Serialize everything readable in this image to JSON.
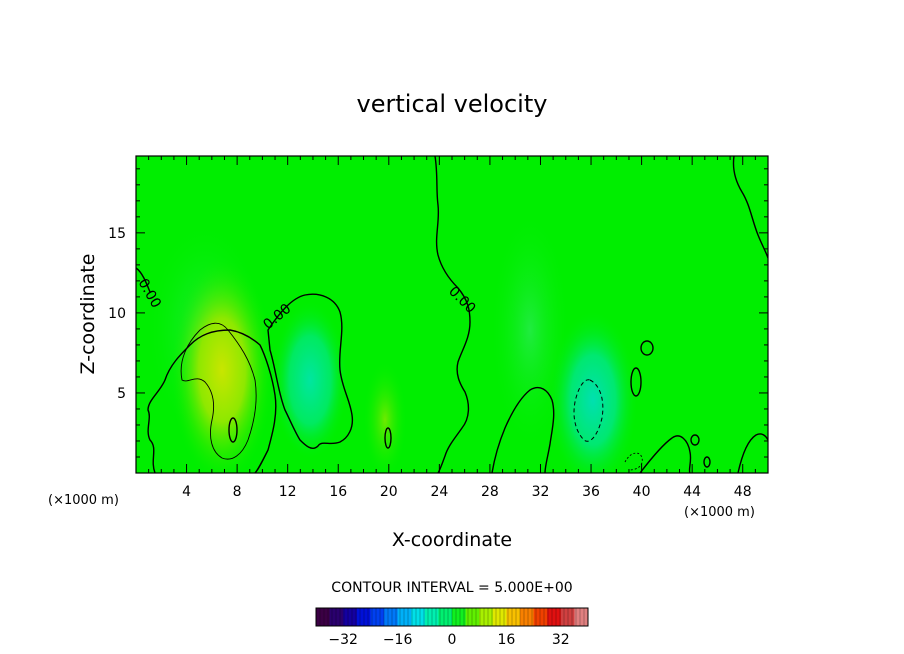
{
  "chart_data": {
    "type": "heatmap",
    "title": "vertical velocity",
    "xlabel": "X-coordinate",
    "ylabel": "Z-coordinate",
    "x_unit_left": "(×1000 m)",
    "x_unit_right": "(×1000 m)",
    "xlim": [
      0,
      50
    ],
    "ylim": [
      0,
      19.8
    ],
    "x_ticks": [
      4,
      8,
      12,
      16,
      20,
      24,
      28,
      32,
      36,
      40,
      44,
      48
    ],
    "y_ticks": [
      5,
      10,
      15
    ],
    "contour_interval_text": "CONTOUR INTERVAL = 5.000E+00",
    "contour_labels": [
      "0.00",
      "0.00",
      "0.00"
    ],
    "colorbar": {
      "range": [
        -40,
        40
      ],
      "ticks": [
        -32,
        -16,
        0,
        16,
        32
      ],
      "colors": [
        "#3b0044",
        "#2a006e",
        "#1400a0",
        "#0010d8",
        "#0040f0",
        "#0078f8",
        "#00b0f8",
        "#00e0e8",
        "#00f0b0",
        "#00f070",
        "#10f020",
        "#60f000",
        "#a8f000",
        "#e0e800",
        "#f8c000",
        "#f88000",
        "#f04000",
        "#e01010",
        "#d04040",
        "#e08080"
      ]
    },
    "background_color": "#00ee00",
    "features": [
      {
        "kind": "updraft",
        "x": 7.5,
        "z": 5.5,
        "peak": 10
      },
      {
        "kind": "downdraft",
        "x": 13.5,
        "z": 5.0,
        "peak": -4
      },
      {
        "kind": "downdraft",
        "x": 35.5,
        "z": 4.0,
        "peak": -6
      },
      {
        "kind": "updraft",
        "x": 20,
        "z": 4.0,
        "peak": 3
      }
    ]
  }
}
